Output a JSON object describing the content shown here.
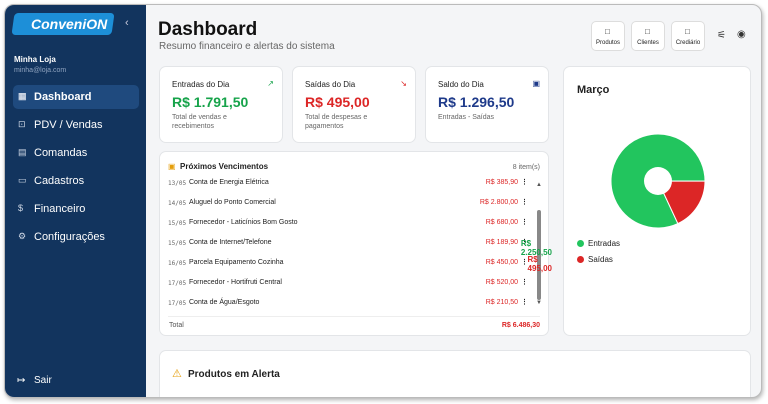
{
  "sidebar": {
    "logo": "ConveniON",
    "store_name": "Minha Loja",
    "store_email": "minha@loja.com",
    "menu": [
      "Dashboard",
      "PDV / Vendas",
      "Comandas",
      "Cadastros",
      "Financeiro",
      "Configurações"
    ],
    "logout": "Sair"
  },
  "header": {
    "title": "Dashboard",
    "subtitle": "Resumo financeiro e alertas do sistema",
    "buttons": [
      "Produtos",
      "Clientes",
      "Crediário"
    ]
  },
  "cards": [
    {
      "title": "Entradas do Dia",
      "value": "R$ 1.791,50",
      "note": "Total de vendas e recebimentos",
      "color": "#16a34a"
    },
    {
      "title": "Saídas do Dia",
      "value": "R$ 495,00",
      "note": "Total de despesas e pagamentos",
      "color": "#dc2626"
    },
    {
      "title": "Saldo do Dia",
      "value": "R$ 1.296,50",
      "note": "Entradas - Saídas",
      "color": "#1e3a8a"
    }
  ],
  "due": {
    "title": "Próximos Vencimentos",
    "count": "8 item(s)",
    "rows": [
      [
        "13/05",
        "Conta de Energia Elétrica",
        "R$ 385,90"
      ],
      [
        "14/05",
        "Aluguel do Ponto Comercial",
        "R$ 2.800,00"
      ],
      [
        "15/05",
        "Fornecedor - Laticínios Bom Gosto",
        "R$ 680,00"
      ],
      [
        "15/05",
        "Conta de Internet/Telefone",
        "R$ 189,90"
      ],
      [
        "16/05",
        "Parcela Equipamento Cozinha",
        "R$ 450,00"
      ],
      [
        "17/05",
        "Fornecedor - Hortifruti Central",
        "R$ 520,00"
      ],
      [
        "17/05",
        "Conta de Água/Esgoto",
        "R$ 210,50"
      ]
    ],
    "total_label": "Total",
    "total_value": "R$ 6.486,30"
  },
  "month": {
    "title": "Março",
    "legend": [
      {
        "name": "Entradas",
        "value": 2250.5,
        "label": "R$ 2.250,50",
        "color": "#22c55e"
      },
      {
        "name": "Saídas",
        "value": 495,
        "label": "R$ 495,00",
        "color": "#dc2626"
      }
    ]
  },
  "alerts": {
    "title": "Produtos em Alerta"
  }
}
